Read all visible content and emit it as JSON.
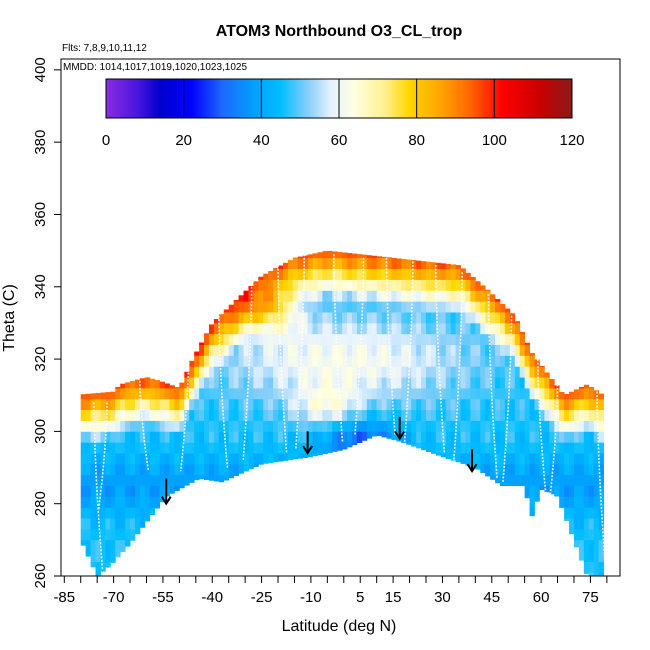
{
  "chart_data": {
    "type": "heatmap",
    "title": "ATOM3 Northbound O3_CL_trop",
    "flights_note": "Flts: 7,8,9,10,11,12",
    "dates_note": "MMDD: 1014,1017,1019,1020,1023,1025",
    "xlabel": "Latitude (deg N)",
    "ylabel": "Theta (C)",
    "xlim": [
      -86,
      84
    ],
    "ylim": [
      260,
      403
    ],
    "x_ticks": [
      -85,
      -70,
      -55,
      -40,
      -25,
      -10,
      5,
      15,
      30,
      45,
      60,
      75
    ],
    "x_tick_labels": [
      "-85",
      "-70",
      "-55",
      "-40",
      "-25",
      "-10",
      "5",
      "15",
      "30",
      "45",
      "60",
      "75"
    ],
    "y_ticks": [
      260,
      280,
      300,
      320,
      340,
      360,
      380,
      400
    ],
    "y_tick_labels": [
      "260",
      "280",
      "300",
      "320",
      "340",
      "360",
      "380",
      "400"
    ],
    "colorbar": {
      "min": 0,
      "max": 120,
      "ticks": [
        0,
        20,
        40,
        60,
        80,
        100,
        120
      ],
      "tick_labels": [
        "0",
        "20",
        "40",
        "60",
        "80",
        "100",
        "120"
      ],
      "stops": [
        {
          "v": 0,
          "color": "#8a2be2"
        },
        {
          "v": 8,
          "color": "#4b16e0"
        },
        {
          "v": 14,
          "color": "#0000cd"
        },
        {
          "v": 22,
          "color": "#0000ff"
        },
        {
          "v": 30,
          "color": "#1e69ff"
        },
        {
          "v": 38,
          "color": "#00a0ff"
        },
        {
          "v": 45,
          "color": "#00bfff"
        },
        {
          "v": 52,
          "color": "#87cefa"
        },
        {
          "v": 58,
          "color": "#e6f2ff"
        },
        {
          "v": 64,
          "color": "#ffffe0"
        },
        {
          "v": 72,
          "color": "#fff08c"
        },
        {
          "v": 78,
          "color": "#ffd700"
        },
        {
          "v": 86,
          "color": "#ffa500"
        },
        {
          "v": 94,
          "color": "#ff6400"
        },
        {
          "v": 102,
          "color": "#ff0000"
        },
        {
          "v": 112,
          "color": "#c80000"
        },
        {
          "v": 120,
          "color": "#8b1a1a"
        }
      ]
    },
    "field": {
      "lat_step": 1.5,
      "theta_step": 3,
      "bottom_boundary": [
        {
          "lat": -80,
          "theta": 270
        },
        {
          "lat": -75,
          "theta": 260
        },
        {
          "lat": -71,
          "theta": 263
        },
        {
          "lat": -65,
          "theta": 269
        },
        {
          "lat": -54,
          "theta": 282
        },
        {
          "lat": -44,
          "theta": 287
        },
        {
          "lat": -37,
          "theta": 286
        },
        {
          "lat": -25,
          "theta": 291
        },
        {
          "lat": -10,
          "theta": 293
        },
        {
          "lat": 0,
          "theta": 295
        },
        {
          "lat": 10,
          "theta": 299
        },
        {
          "lat": 18,
          "theta": 297
        },
        {
          "lat": 30,
          "theta": 293
        },
        {
          "lat": 40,
          "theta": 290
        },
        {
          "lat": 48,
          "theta": 285
        },
        {
          "lat": 55,
          "theta": 285
        },
        {
          "lat": 57,
          "theta": 276
        },
        {
          "lat": 60,
          "theta": 284
        },
        {
          "lat": 65,
          "theta": 282
        },
        {
          "lat": 72,
          "theta": 265
        },
        {
          "lat": 74,
          "theta": 260
        },
        {
          "lat": 79,
          "theta": 260
        }
      ],
      "top_boundary": [
        {
          "lat": -83,
          "theta": 310
        },
        {
          "lat": -70,
          "theta": 311
        },
        {
          "lat": -68,
          "theta": 313
        },
        {
          "lat": -60,
          "theta": 315
        },
        {
          "lat": -56,
          "theta": 314
        },
        {
          "lat": -50,
          "theta": 312
        },
        {
          "lat": -46,
          "theta": 320
        },
        {
          "lat": -40,
          "theta": 330
        },
        {
          "lat": -32,
          "theta": 337
        },
        {
          "lat": -25,
          "theta": 343
        },
        {
          "lat": -15,
          "theta": 348
        },
        {
          "lat": -5,
          "theta": 350
        },
        {
          "lat": 5,
          "theta": 349
        },
        {
          "lat": 15,
          "theta": 348
        },
        {
          "lat": 25,
          "theta": 347
        },
        {
          "lat": 35,
          "theta": 346
        },
        {
          "lat": 44,
          "theta": 339
        },
        {
          "lat": 52,
          "theta": 332
        },
        {
          "lat": 57,
          "theta": 322
        },
        {
          "lat": 62,
          "theta": 316
        },
        {
          "lat": 67,
          "theta": 310
        },
        {
          "lat": 74,
          "theta": 313
        },
        {
          "lat": 79,
          "theta": 310
        }
      ]
    },
    "profiles": [
      {
        "lat": -76,
        "dir": 1,
        "top": 308,
        "bottom": 262
      },
      {
        "lat": -72,
        "dir": -1,
        "top": 308,
        "bottom": 278
      },
      {
        "lat": -62,
        "dir": 1,
        "top": 314,
        "bottom": 289
      },
      {
        "lat": -47,
        "dir": -1,
        "top": 325,
        "bottom": 289
      },
      {
        "lat": -38,
        "dir": 1,
        "top": 333,
        "bottom": 290
      },
      {
        "lat": -28,
        "dir": -1,
        "top": 341,
        "bottom": 292
      },
      {
        "lat": -20,
        "dir": 1,
        "top": 346,
        "bottom": 294
      },
      {
        "lat": -12,
        "dir": -1,
        "top": 349,
        "bottom": 295
      },
      {
        "lat": -3,
        "dir": 1,
        "top": 349,
        "bottom": 297
      },
      {
        "lat": 6,
        "dir": -1,
        "top": 348,
        "bottom": 299
      },
      {
        "lat": 13,
        "dir": 1,
        "top": 348,
        "bottom": 299
      },
      {
        "lat": 21,
        "dir": -1,
        "top": 347,
        "bottom": 296
      },
      {
        "lat": 28,
        "dir": 1,
        "top": 346,
        "bottom": 294
      },
      {
        "lat": 36,
        "dir": -1,
        "top": 344,
        "bottom": 291
      },
      {
        "lat": 44,
        "dir": 1,
        "top": 338,
        "bottom": 287
      },
      {
        "lat": 51,
        "dir": -1,
        "top": 332,
        "bottom": 286
      },
      {
        "lat": 59,
        "dir": 1,
        "top": 320,
        "bottom": 281
      },
      {
        "lat": 65,
        "dir": -1,
        "top": 313,
        "bottom": 279
      },
      {
        "lat": 77,
        "dir": 1,
        "top": 312,
        "bottom": 262
      }
    ],
    "annotations": [
      {
        "type": "arrow",
        "lat": -54,
        "theta_from": 287,
        "theta_to": 280
      },
      {
        "type": "arrow",
        "lat": -11,
        "theta_from": 300,
        "theta_to": 294
      },
      {
        "type": "arrow",
        "lat": 17,
        "theta_from": 304,
        "theta_to": 298
      },
      {
        "type": "arrow",
        "lat": 39,
        "theta_from": 295,
        "theta_to": 289
      }
    ]
  }
}
